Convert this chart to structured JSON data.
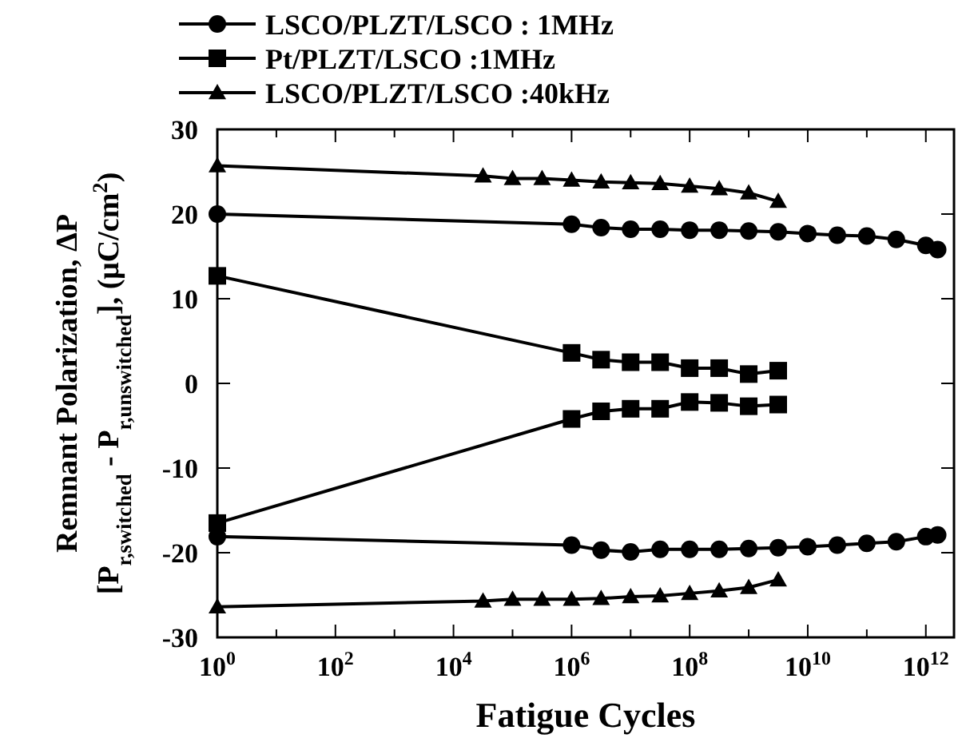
{
  "chart_data": {
    "type": "line",
    "xlabel": "Fatigue Cycles",
    "ylabel": "Remnant Polarization, ΔP\n[P$_{r,switched}$ - P$_{r,unswitched}$], (μC/cm$^{2}$)",
    "log": "x",
    "xlim": [
      1,
      3000000000000
    ],
    "ylim": [
      -30,
      30
    ],
    "xticks": [
      {
        "value": 1,
        "label": "10$^{0}$"
      },
      {
        "value": 10,
        "label": null
      },
      {
        "value": 100,
        "label": "10$^{2}$"
      },
      {
        "value": 1000,
        "label": null
      },
      {
        "value": 10000,
        "label": "10$^{4}$"
      },
      {
        "value": 100000,
        "label": null
      },
      {
        "value": 1000000,
        "label": "10$^{6}$"
      },
      {
        "value": 10000000,
        "label": null
      },
      {
        "value": 100000000,
        "label": "10$^{8}$"
      },
      {
        "value": 1000000000,
        "label": null
      },
      {
        "value": 10000000000,
        "label": "10$^{10}$"
      },
      {
        "value": 100000000000,
        "label": null
      },
      {
        "value": 1000000000000,
        "label": "10$^{12}$"
      }
    ],
    "yticks": [
      -30,
      -20,
      -10,
      0,
      10,
      20,
      30
    ],
    "grid": false,
    "legend": "top",
    "line_style": "solid",
    "series": [
      {
        "name": "LSCO/PLZT/LSCO : 1MHz",
        "color": "#000000",
        "marker": "circle",
        "x": [
          1,
          1000000,
          3162000,
          10000000,
          31620000,
          100000000,
          316200000,
          1000000000,
          3162000000,
          10000000000,
          31620000000,
          100000000000,
          316200000000,
          1000000000000,
          1585000000000
        ],
        "values": [
          20,
          18.8,
          18.4,
          18.2,
          18.2,
          18.1,
          18.1,
          18,
          17.9,
          17.7,
          17.5,
          17.4,
          17,
          16.3,
          15.8
        ]
      },
      {
        "name": "Pt/PLZT/LSCO :1MHz",
        "color": "#000000",
        "marker": "square",
        "x": [
          1,
          1000000,
          3162000,
          10000000,
          31620000,
          100000000,
          316200000,
          1000000000,
          3162000000
        ],
        "values": [
          12.7,
          3.6,
          2.8,
          2.5,
          2.5,
          1.8,
          1.8,
          1.1,
          1.5
        ]
      },
      {
        "name": "LSCO/PLZT/LSCO :40kHz",
        "color": "#000000",
        "marker": "triangle",
        "x": [
          1,
          31620,
          100000,
          316200,
          1000000,
          3162000,
          10000000,
          31620000,
          100000000,
          316200000,
          1000000000,
          3162000000
        ],
        "values": [
          25.7,
          24.5,
          24.2,
          24.2,
          24,
          23.8,
          23.7,
          23.6,
          23.3,
          23,
          22.5,
          21.5
        ]
      },
      {
        "color": "#000000",
        "marker": "circle",
        "x": [
          1,
          1000000,
          3162000,
          10000000,
          31620000,
          100000000,
          316200000,
          1000000000,
          3162000000,
          10000000000,
          31620000000,
          100000000000,
          316200000000,
          1000000000000,
          1585000000000
        ],
        "values": [
          -18.1,
          -19.1,
          -19.7,
          -19.9,
          -19.6,
          -19.6,
          -19.6,
          -19.5,
          -19.4,
          -19.3,
          -19.1,
          -18.9,
          -18.7,
          -18.1,
          -17.9
        ]
      },
      {
        "color": "#000000",
        "marker": "square",
        "x": [
          1,
          1000000,
          3162000,
          10000000,
          31620000,
          100000000,
          316200000,
          1000000000,
          3162000000
        ],
        "values": [
          -16.5,
          -4.2,
          -3.3,
          -3,
          -3,
          -2.2,
          -2.3,
          -2.7,
          -2.5
        ]
      },
      {
        "color": "#000000",
        "marker": "triangle",
        "x": [
          1,
          31620,
          100000,
          316200,
          1000000,
          3162000,
          10000000,
          31620000,
          100000000,
          316200000,
          1000000000,
          3162000000
        ],
        "values": [
          -26.4,
          -25.7,
          -25.5,
          -25.5,
          -25.5,
          -25.4,
          -25.2,
          -25.1,
          -24.8,
          -24.5,
          -24.1,
          -23.2
        ]
      }
    ]
  }
}
